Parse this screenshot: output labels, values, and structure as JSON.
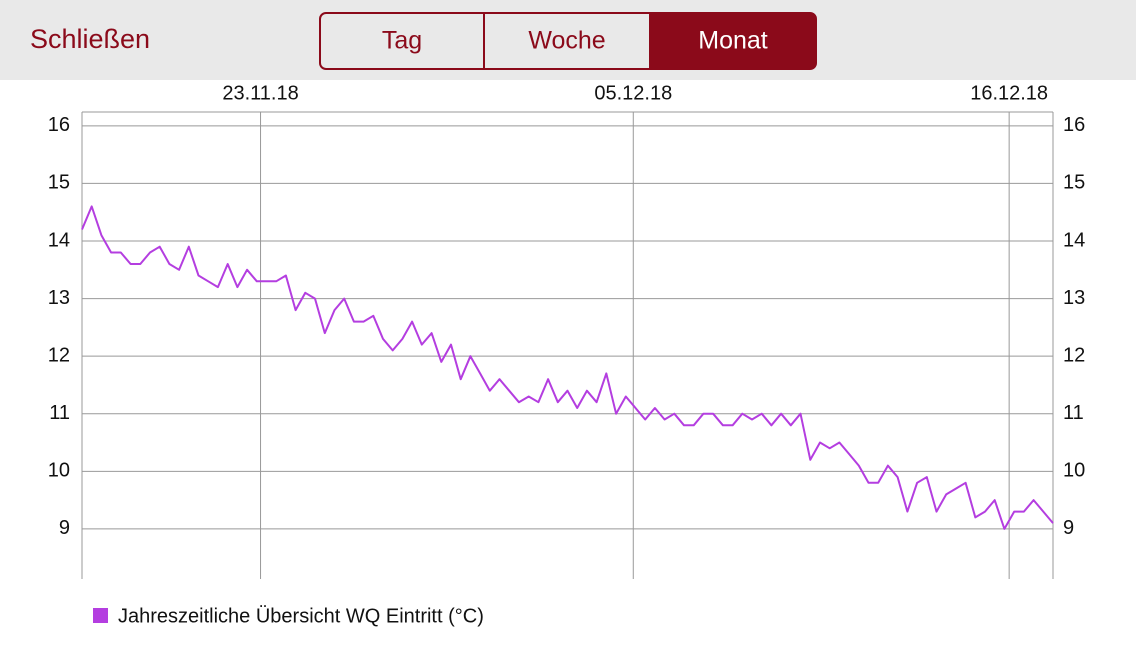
{
  "header": {
    "close": "Schließen",
    "segments": [
      "Tag",
      "Woche",
      "Monat"
    ],
    "selected": 2
  },
  "chart_data": {
    "type": "line",
    "x": [
      0,
      0.31,
      0.62,
      0.93,
      1.24,
      1.55,
      1.86,
      2.17,
      2.48,
      2.79,
      3.1,
      3.41,
      3.72,
      4.03,
      4.34,
      4.65,
      4.96,
      5.27,
      5.58,
      5.89,
      6.2,
      6.51,
      6.82,
      7.13,
      7.44,
      7.75,
      8.06,
      8.37,
      8.68,
      8.99,
      9.3,
      9.61,
      9.92,
      10.23,
      10.54,
      10.85,
      11.16,
      11.47,
      11.78,
      12.09,
      12.4,
      12.71,
      13.02,
      13.33,
      13.64,
      13.95,
      14.26,
      14.57,
      14.88,
      15.19,
      15.5,
      15.81,
      16.12,
      16.43,
      16.74,
      17.05,
      17.36,
      17.67,
      17.98,
      18.29,
      18.6,
      18.91,
      19.22,
      19.53,
      19.84,
      20.15,
      20.46,
      20.77,
      21.08,
      21.39,
      21.7,
      22.01,
      22.32,
      22.63,
      22.94,
      23.25,
      23.56,
      23.87,
      24.18,
      24.49,
      24.8,
      25.11,
      25.42,
      25.73,
      26.04,
      26.35,
      26.66,
      26.97,
      27.28,
      27.59,
      27.9,
      28.21,
      28.52,
      28.83,
      29.14,
      29.45,
      29.76,
      30.07,
      30.38,
      30.69,
      31.0
    ],
    "series": [
      {
        "name": "Jahreszeitliche Übersicht WQ Eintritt (°C)",
        "color": "#b43ee0",
        "values": [
          14.2,
          14.6,
          14.1,
          13.8,
          13.8,
          13.6,
          13.6,
          13.8,
          13.9,
          13.6,
          13.5,
          13.9,
          13.4,
          13.3,
          13.2,
          13.6,
          13.2,
          13.5,
          13.3,
          13.3,
          13.3,
          13.4,
          12.8,
          13.1,
          13.0,
          12.4,
          12.8,
          13.0,
          12.6,
          12.6,
          12.7,
          12.3,
          12.1,
          12.3,
          12.6,
          12.2,
          12.4,
          11.9,
          12.2,
          11.6,
          12.0,
          11.7,
          11.4,
          11.6,
          11.4,
          11.2,
          11.3,
          11.2,
          11.6,
          11.2,
          11.4,
          11.1,
          11.4,
          11.2,
          11.7,
          11.0,
          11.3,
          11.1,
          10.9,
          11.1,
          10.9,
          11.0,
          10.8,
          10.8,
          11.0,
          11.0,
          10.8,
          10.8,
          11.0,
          10.9,
          11.0,
          10.8,
          11.0,
          10.8,
          11.0,
          10.2,
          10.5,
          10.4,
          10.5,
          10.3,
          10.1,
          9.8,
          9.8,
          10.1,
          9.9,
          9.3,
          9.8,
          9.9,
          9.3,
          9.6,
          9.7,
          9.8,
          9.2,
          9.3,
          9.5,
          9.0,
          9.3,
          9.3,
          9.5,
          9.3,
          9.1
        ]
      }
    ],
    "xlim": [
      0,
      31
    ],
    "xticks": [
      {
        "value": 5.7,
        "label": "23.11.18"
      },
      {
        "value": 17.6,
        "label": "05.12.18"
      },
      {
        "value": 29.6,
        "label": "16.12.18"
      }
    ],
    "ylim": [
      8.13,
      16.24
    ],
    "yticks": [
      9,
      10,
      11,
      12,
      13,
      14,
      15,
      16
    ],
    "grid": true
  }
}
